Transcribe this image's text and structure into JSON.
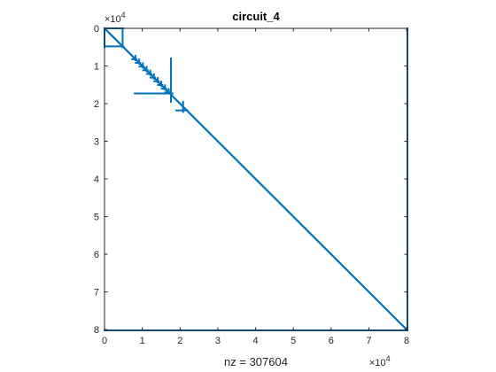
{
  "chart_data": {
    "type": "scatter",
    "title": "circuit_4",
    "xlabel": "nz = 307604",
    "ylabel": "",
    "xlim": [
      0,
      80209
    ],
    "ylim": [
      0,
      80209
    ],
    "y_reversed": true,
    "x_ticks": [
      0,
      10000,
      20000,
      30000,
      40000,
      50000,
      60000,
      70000,
      80000
    ],
    "y_ticks": [
      0,
      10000,
      20000,
      30000,
      40000,
      50000,
      60000,
      70000,
      80000
    ],
    "x_tick_labels": [
      "0",
      "1",
      "2",
      "3",
      "4",
      "5",
      "6",
      "7",
      "8"
    ],
    "y_tick_labels": [
      "0",
      "1",
      "2",
      "3",
      "4",
      "5",
      "6",
      "7",
      "8"
    ],
    "x_multiplier": "×10",
    "x_multiplier_exp": "4",
    "y_multiplier": "×10",
    "y_multiplier_exp": "4",
    "marker_color": "#0072BD",
    "segments": [
      {
        "name": "diagonal",
        "from": [
          0,
          0
        ],
        "to": [
          80209,
          80209
        ]
      },
      {
        "name": "right-column",
        "from": [
          80209,
          0
        ],
        "to": [
          80209,
          80209
        ]
      },
      {
        "name": "bottom-row",
        "from": [
          0,
          80209
        ],
        "to": [
          80209,
          80209
        ]
      },
      {
        "name": "left-column-top",
        "from": [
          0,
          0
        ],
        "to": [
          0,
          5000
        ]
      },
      {
        "name": "top-row-short",
        "from": [
          0,
          0
        ],
        "to": [
          5000,
          0
        ]
      },
      {
        "name": "block1-row",
        "from": [
          200,
          4800
        ],
        "to": [
          5000,
          4800
        ]
      },
      {
        "name": "block1-col",
        "from": [
          4800,
          200
        ],
        "to": [
          4800,
          5000
        ]
      },
      {
        "name": "block2-row",
        "from": [
          8000,
          17300
        ],
        "to": [
          18000,
          17300
        ]
      },
      {
        "name": "block2-col",
        "from": [
          17600,
          8000
        ],
        "to": [
          17600,
          19500
        ]
      },
      {
        "name": "block3-row",
        "from": [
          19000,
          21800
        ],
        "to": [
          22000,
          21800
        ]
      },
      {
        "name": "block3-col",
        "from": [
          20800,
          19500
        ],
        "to": [
          20800,
          22200
        ]
      }
    ],
    "staircase": {
      "from": 8200,
      "to": 17000,
      "steps": 10,
      "width": 900
    }
  }
}
